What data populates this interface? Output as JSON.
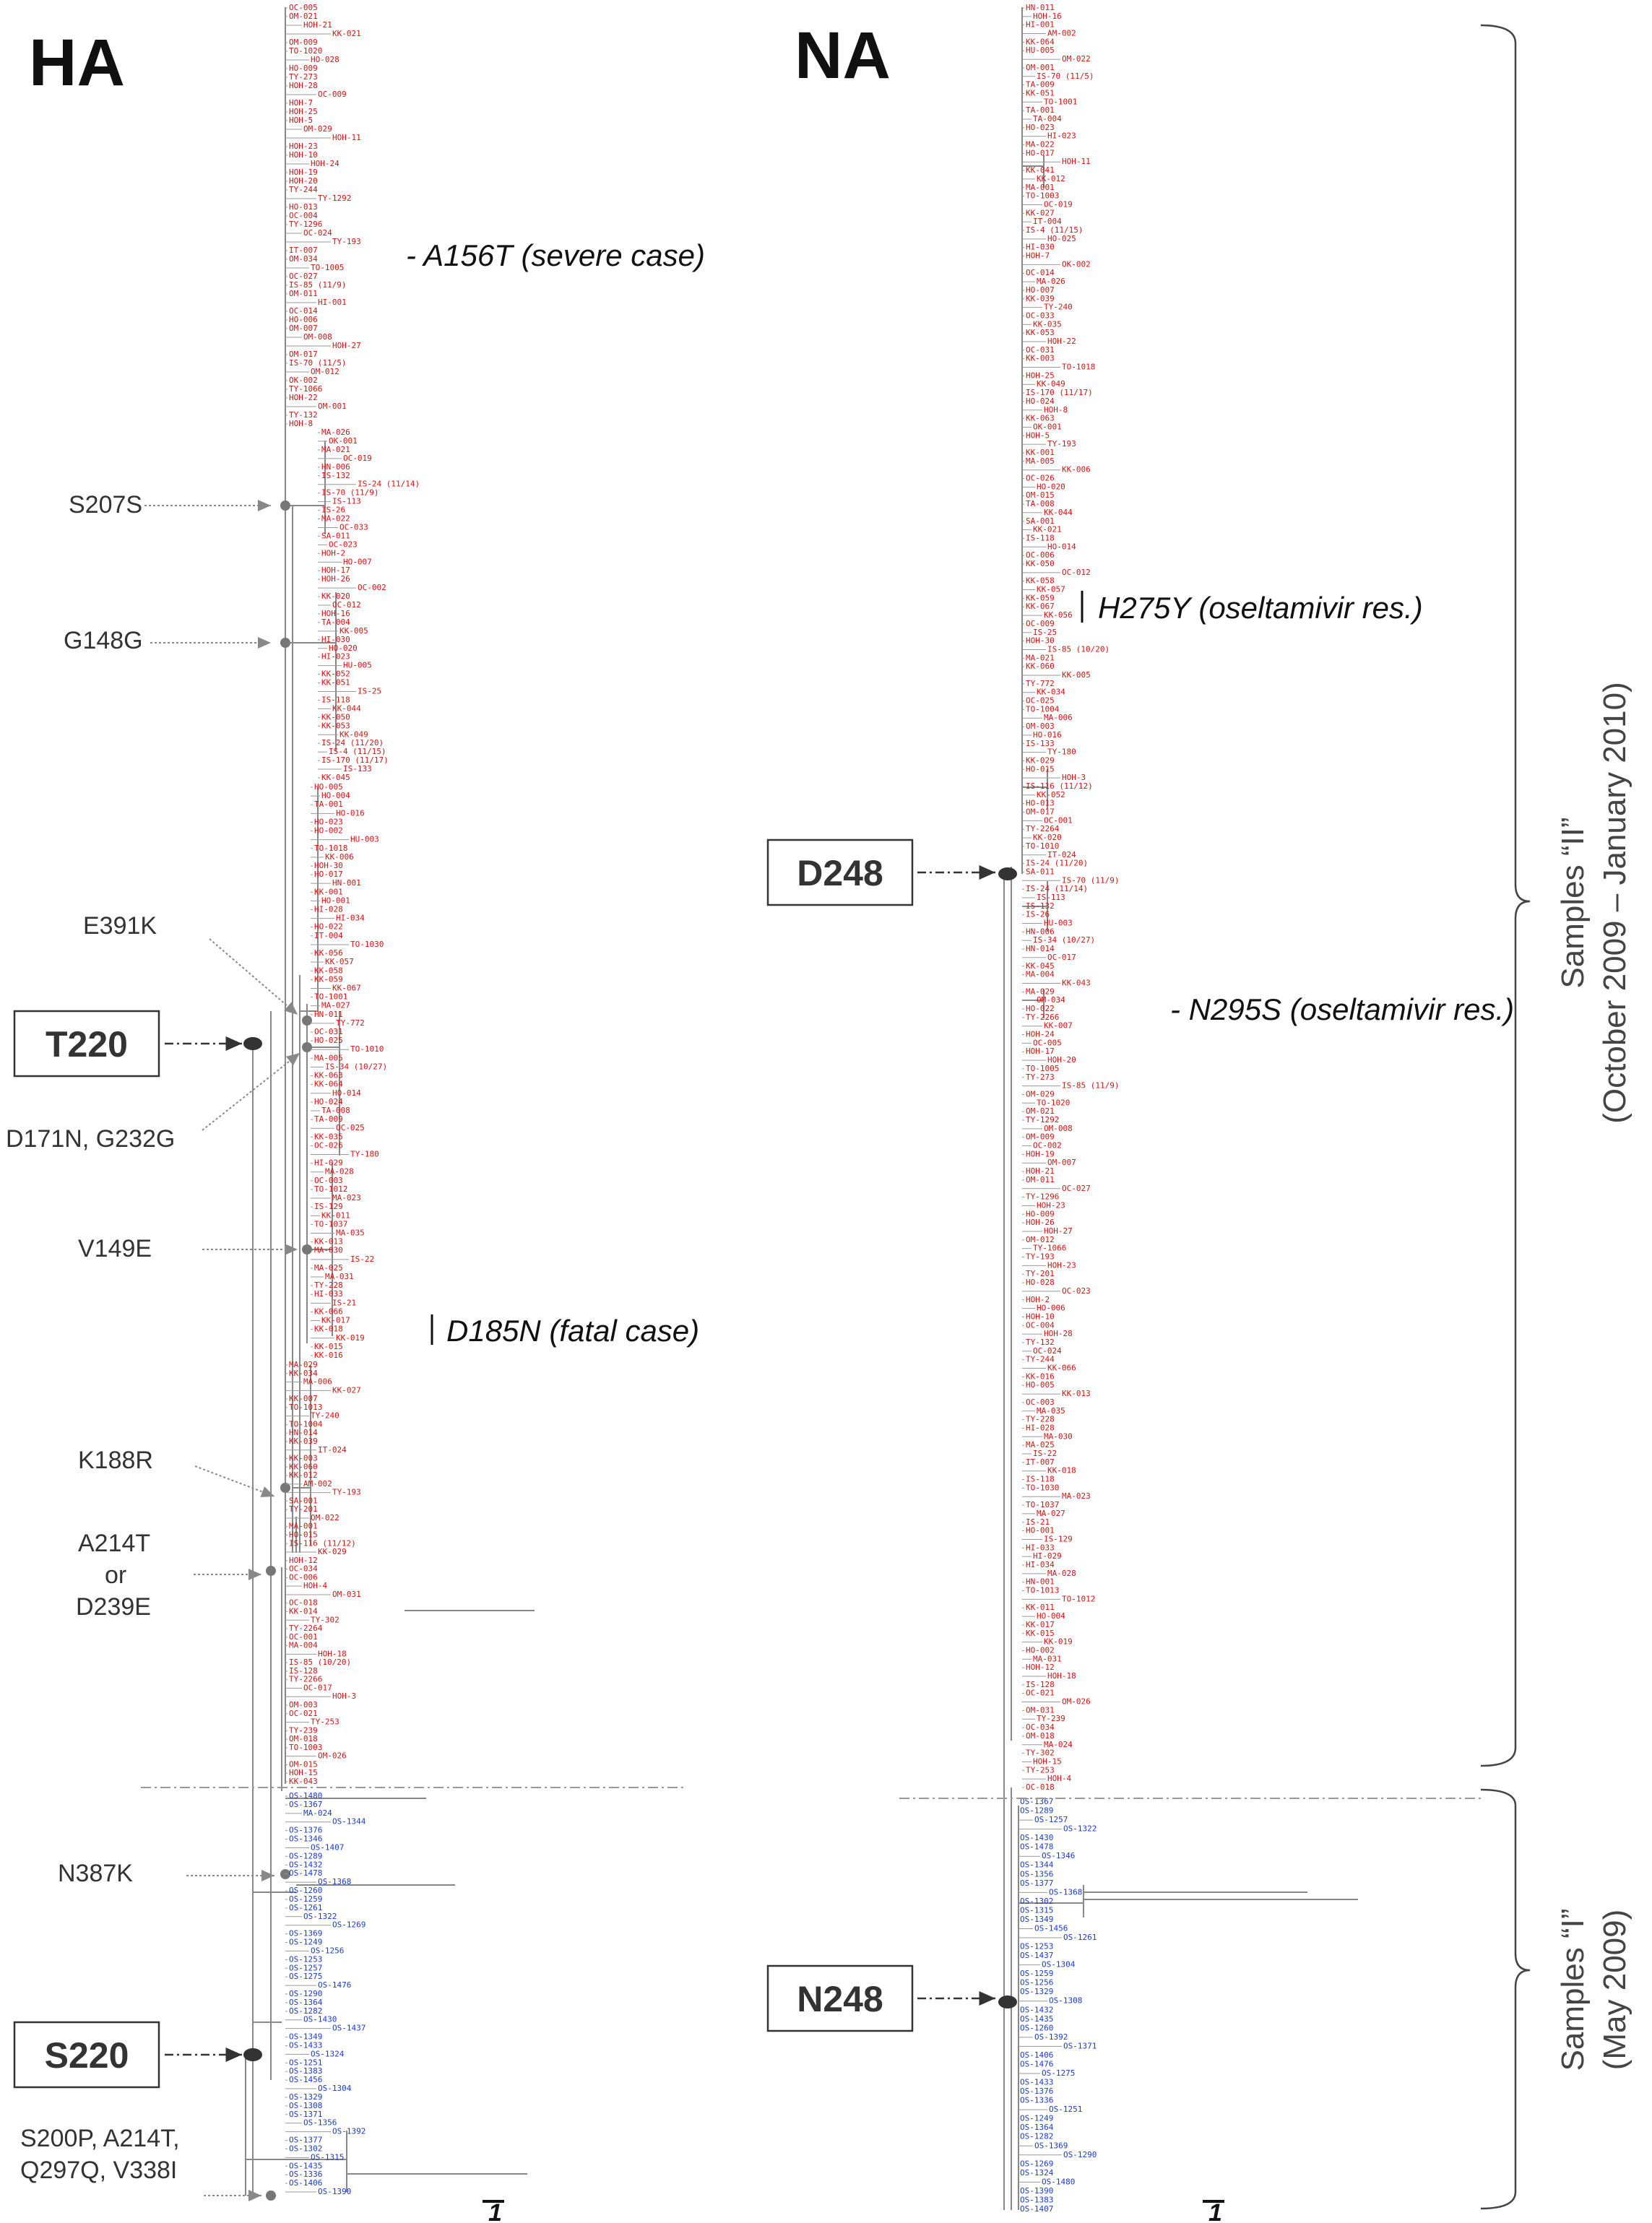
{
  "ha": {
    "title": "HA",
    "mutations": {
      "s207s": "S207S",
      "g148g": "G148G",
      "e391k": "E391K",
      "d171n": "D171N, G232G",
      "v149e": "V149E",
      "k188r": "K188R",
      "a214t_1": "A214T",
      "a214t_2": "or",
      "a214t_3": "D239E",
      "n387k": "N387K",
      "s200p_1": "S200P, A214T,",
      "s200p_2": "Q297Q, V338I"
    },
    "annotations": {
      "a156t": "- A156T (severe case)",
      "d185n": "D185N (fatal case)"
    },
    "boxes": {
      "t220": "T220",
      "s220": "S220"
    },
    "scale": "1",
    "leaves_red_top": [
      "OC-005",
      "OM-021",
      "HOH-21",
      "KK-021",
      "OM-009",
      "TO-1020",
      "HO-028",
      "HO-009",
      "TY-273",
      "HOH-28",
      "OC-009",
      "HOH-7",
      "HOH-25",
      "HOH-5",
      "OM-029",
      "HOH-11",
      "HOH-23",
      "HOH-10",
      "HOH-24",
      "HOH-19",
      "HOH-20",
      "TY-244",
      "TY-1292",
      "HO-013",
      "OC-004",
      "TY-1296",
      "OC-024",
      "TY-193",
      "IT-007",
      "OM-034",
      "TO-1005",
      "OC-027",
      "IS-85 (11/9)",
      "OM-011",
      "HI-001",
      "OC-014",
      "HO-006",
      "OM-007",
      "OM-008",
      "HOH-27",
      "OM-017",
      "IS-70 (11/5)",
      "OM-012",
      "OK-002",
      "TY-1066",
      "HOH-22",
      "OM-001",
      "TY-132",
      "HOH-8"
    ],
    "leaves_red_mid": [
      "MA-026",
      "OK-001",
      "MA-021",
      "OC-019",
      "HN-006",
      "IS-132",
      "IS-24 (11/14)",
      "IS-70 (11/9)",
      "IS-113",
      "IS-26",
      "MA-022",
      "OC-033",
      "SA-011",
      "OC-023",
      "HOH-2",
      "HO-007",
      "HOH-17",
      "HOH-26",
      "OC-002",
      "KK-020",
      "OC-012",
      "HOH-16",
      "TA-004",
      "KK-005",
      "HI-030",
      "HO-020",
      "HI-023",
      "HU-005",
      "KK-052",
      "KK-051",
      "IS-25",
      "IS-118",
      "KK-044",
      "KK-050",
      "KK-053",
      "KK-049",
      "IS-24 (11/20)",
      "IS-4 (11/15)",
      "IS-170 (11/17)",
      "IS-133",
      "KK-045"
    ],
    "leaves_red_low": [
      "HO-005",
      "HO-004",
      "TA-001",
      "HO-016",
      "HO-023",
      "HO-002",
      "HU-003",
      "TO-1018",
      "KK-006",
      "HOH-30",
      "HO-017",
      "HN-001",
      "KK-001",
      "HO-001",
      "HI-028",
      "HI-034",
      "HO-022",
      "IT-004",
      "TO-1030",
      "KK-056",
      "KK-057",
      "KK-058",
      "KK-059",
      "KK-067",
      "TO-1001",
      "MA-027",
      "HN-011",
      "TY-772",
      "OC-031",
      "HO-025",
      "TO-1010",
      "MA-005",
      "IS-34 (10/27)",
      "KK-063",
      "KK-064",
      "HO-014",
      "HO-024",
      "TA-008",
      "TA-009",
      "OC-025",
      "KK-035",
      "OC-026",
      "TY-180",
      "HI-029",
      "MA-028",
      "OC-003",
      "TO-1012",
      "MA-023",
      "IS-129",
      "KK-011",
      "TO-1037",
      "MA-035",
      "KK-013",
      "MA-030",
      "IS-22",
      "MA-025",
      "MA-031",
      "TY-228",
      "HI-033",
      "IS-21",
      "KK-066",
      "KK-017",
      "KK-018",
      "KK-019",
      "KK-015",
      "KK-016"
    ],
    "leaves_red_bottom": [
      "MA-029",
      "KK-034",
      "MA-006",
      "KK-027",
      "KK-007",
      "TO-1013",
      "TY-240",
      "TO-1004",
      "HN-014",
      "KK-039",
      "IT-024",
      "KK-003",
      "KK-060",
      "KK-012",
      "AM-002",
      "TY-193",
      "SA-001",
      "TY-201",
      "OM-022",
      "MA-001",
      "HO-015",
      "IS-116 (11/12)",
      "KK-029",
      "HOH-12",
      "OC-034",
      "OC-006",
      "HOH-4",
      "OM-031",
      "OC-018",
      "KK-014",
      "TY-302",
      "TY-2264",
      "OC-001",
      "MA-004",
      "HOH-18",
      "IS-85 (10/20)",
      "IS-128",
      "TY-2266",
      "OC-017",
      "HOH-3",
      "OM-003",
      "OC-021",
      "TY-253",
      "TY-239",
      "OM-018",
      "TO-1003",
      "OM-026",
      "OM-015",
      "HOH-15",
      "KK-043"
    ],
    "leaves_blue": [
      "OS-1480",
      "OS-1367",
      "MA-024",
      "OS-1344",
      "OS-1376",
      "OS-1346",
      "OS-1407",
      "OS-1289",
      "OS-1432",
      "OS-1478",
      "OS-1368",
      "OS-1260",
      "OS-1259",
      "OS-1261",
      "OS-1322",
      "OS-1269",
      "OS-1369",
      "OS-1249",
      "OS-1256",
      "OS-1253",
      "OS-1257",
      "OS-1275",
      "OS-1476",
      "OS-1290",
      "OS-1364",
      "OS-1282",
      "OS-1430",
      "OS-1437",
      "OS-1349",
      "OS-1433",
      "OS-1324",
      "OS-1251",
      "OS-1383",
      "OS-1456",
      "OS-1304",
      "OS-1329",
      "OS-1308",
      "OS-1371",
      "OS-1356",
      "OS-1392",
      "OS-1377",
      "OS-1302",
      "OS-1315",
      "OS-1435",
      "OS-1336",
      "OS-1406",
      "OS-1390"
    ]
  },
  "na": {
    "title": "NA",
    "annotations": {
      "h275y": "H275Y (oseltamivir res.)",
      "n295s": "- N295S (oseltamivir res.)"
    },
    "boxes": {
      "d248": "D248",
      "n248": "N248"
    },
    "scale": "1",
    "leaves_red": [
      "HN-011",
      "HOH-16",
      "HI-001",
      "AM-002",
      "KK-064",
      "HU-005",
      "OM-022",
      "OM-001",
      "IS-70 (11/5)",
      "TA-009",
      "KK-051",
      "TO-1001",
      "TA-001",
      "TA-004",
      "HO-023",
      "HI-023",
      "MA-022",
      "HO-017",
      "HOH-11",
      "KK-041",
      "KK-012",
      "MA-001",
      "TO-1003",
      "OC-019",
      "KK-027",
      "IT-004",
      "IS-4 (11/15)",
      "HO-025",
      "HI-030",
      "HOH-7",
      "OK-002",
      "OC-014",
      "MA-026",
      "HO-007",
      "KK-039",
      "TY-240",
      "OC-033",
      "KK-035",
      "KK-053",
      "HOH-22",
      "OC-031",
      "KK-003",
      "TO-1018",
      "HOH-25",
      "KK-049",
      "IS-170 (11/17)",
      "HO-024",
      "HOH-8",
      "KK-063",
      "OK-001",
      "HOH-5",
      "TY-193",
      "KK-001",
      "MA-005",
      "KK-006",
      "OC-026",
      "HO-020",
      "OM-015",
      "TA-008",
      "KK-044",
      "SA-001",
      "KK-021",
      "IS-118",
      "HO-014",
      "OC-006",
      "KK-050",
      "OC-012",
      "KK-058",
      "KK-057",
      "KK-059",
      "KK-067",
      "KK-056",
      "OC-009",
      "IS-25",
      "HOH-30",
      "IS-85 (10/20)",
      "MA-021",
      "KK-060",
      "KK-005",
      "TY-772",
      "KK-034",
      "OC-025",
      "TO-1004",
      "MA-006",
      "OM-003",
      "HO-016",
      "IS-133",
      "TY-180",
      "KK-029",
      "HO-015",
      "HOH-3",
      "IS-116 (11/12)",
      "KK-052",
      "HO-013",
      "OM-017",
      "OC-001",
      "TY-2264",
      "KK-020",
      "TO-1010",
      "IT-024",
      "IS-24 (11/20)",
      "SA-011",
      "IS-70 (11/9)",
      "IS-24 (11/14)",
      "IS-113",
      "IS-132",
      "IS-26",
      "HU-003",
      "HN-006",
      "IS-34 (10/27)",
      "HN-014",
      "OC-017",
      "KK-045",
      "MA-004",
      "KK-043",
      "MA-029",
      "OM-034",
      "HO-022",
      "TY-2266",
      "KK-007",
      "HOH-24",
      "OC-005",
      "HOH-17",
      "HOH-20",
      "TO-1005",
      "TY-273",
      "IS-85 (11/9)",
      "OM-029",
      "TO-1020",
      "OM-021",
      "TY-1292",
      "OM-008",
      "OM-009",
      "OC-002",
      "HOH-19",
      "OM-007",
      "HOH-21",
      "OM-011",
      "OC-027",
      "TY-1296",
      "HOH-23",
      "HO-009",
      "HOH-26",
      "HOH-27",
      "OM-012",
      "TY-1066",
      "TY-193",
      "HOH-23",
      "TY-201",
      "HO-028",
      "OC-023",
      "HOH-2",
      "HO-006",
      "HOH-10",
      "OC-004",
      "HOH-28",
      "TY-132",
      "OC-024",
      "TY-244",
      "KK-066",
      "KK-016",
      "HO-005",
      "KK-013",
      "OC-003",
      "MA-035",
      "TY-228",
      "HI-028",
      "MA-030",
      "MA-025",
      "IS-22",
      "IT-007",
      "KK-018",
      "IS-118",
      "TO-1030",
      "MA-023",
      "TO-1037",
      "MA-027",
      "IS-21",
      "HO-001",
      "IS-129",
      "HI-033",
      "HI-029",
      "HI-034",
      "MA-028",
      "HN-001",
      "TO-1013",
      "TO-1012",
      "KK-011",
      "HO-004",
      "KK-017",
      "KK-015",
      "KK-019",
      "HO-002",
      "MA-031",
      "HOH-12",
      "HOH-18",
      "IS-128",
      "OC-021",
      "OM-026",
      "OM-031",
      "TY-239",
      "OC-034",
      "OM-018",
      "MA-024",
      "TY-302",
      "HOH-15",
      "TY-253",
      "HOH-4",
      "OC-018"
    ],
    "leaves_blue": [
      "OS-1367",
      "OS-1289",
      "OS-1257",
      "OS-1322",
      "OS-1430",
      "OS-1478",
      "OS-1346",
      "OS-1344",
      "OS-1356",
      "OS-1377",
      "OS-1368",
      "OS-1302",
      "OS-1315",
      "OS-1349",
      "OS-1456",
      "OS-1261",
      "OS-1253",
      "OS-1437",
      "OS-1304",
      "OS-1259",
      "OS-1256",
      "OS-1329",
      "OS-1308",
      "OS-1432",
      "OS-1435",
      "OS-1260",
      "OS-1392",
      "OS-1371",
      "OS-1406",
      "OS-1476",
      "OS-1275",
      "OS-1433",
      "OS-1376",
      "OS-1336",
      "OS-1251",
      "OS-1249",
      "OS-1364",
      "OS-1282",
      "OS-1369",
      "OS-1290",
      "OS-1269",
      "OS-1324",
      "OS-1480",
      "OS-1390",
      "OS-1383",
      "OS-1407"
    ]
  },
  "brackets": {
    "samples_ii_1": "Samples “II”",
    "samples_ii_2": "(October 2009 – January 2010)",
    "samples_i_1": "Samples “I”",
    "samples_i_2": "(May 2009)"
  },
  "colors": {
    "sample_ii": "#e01010",
    "sample_i": "#1a3adb",
    "tree": "#888888",
    "dots": "#777777",
    "box_node": "#333333"
  }
}
